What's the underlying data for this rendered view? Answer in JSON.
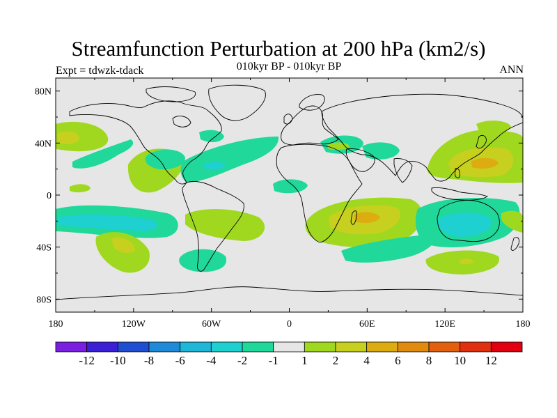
{
  "title": "Streamfunction Perturbation at 200 hPa (km2/s)",
  "subtitle": "010kyr BP - 010kyr BP",
  "left_label": "Expt = tdwzk-tdack",
  "right_label": "ANN",
  "colors": {
    "ocean": "#e6e6e6",
    "frame": "#000000",
    "palette": [
      "#7a1fe0",
      "#3a1fd6",
      "#1f4fd0",
      "#1f8ad8",
      "#1fb6d8",
      "#1fd0d0",
      "#1fd89a",
      "#e6e6e6",
      "#a0d81f",
      "#c8d01f",
      "#dcac10",
      "#e08a10",
      "#e06010",
      "#e03010",
      "#e00010"
    ]
  },
  "chart_data": {
    "type": "contour-map",
    "variable": "Streamfunction Perturbation at 200 hPa",
    "units": "km2/s",
    "projection": "cylindrical equidistant",
    "lon_range": [
      -180,
      180
    ],
    "lat_range": [
      -90,
      90
    ],
    "x_ticks": [
      "180",
      "120W",
      "60W",
      "0",
      "60E",
      "120E",
      "180"
    ],
    "x_tick_values": [
      -180,
      -120,
      -60,
      0,
      60,
      120,
      180
    ],
    "y_ticks": [
      "80N",
      "40N",
      "0",
      "40S",
      "80S"
    ],
    "y_tick_values": [
      80,
      40,
      0,
      -40,
      -80
    ],
    "colorbar_labels": [
      "-12",
      "-10",
      "-8",
      "-6",
      "-4",
      "-2",
      "-1",
      "1",
      "2",
      "4",
      "6",
      "8",
      "10",
      "12"
    ],
    "levels": [
      -12,
      -10,
      -8,
      -6,
      -4,
      -2,
      -1,
      1,
      2,
      4,
      6,
      8,
      10,
      12
    ],
    "anomalies": [
      {
        "lon": -165,
        "lat": 45,
        "level": 3
      },
      {
        "lon": -135,
        "lat": -35,
        "level": 3
      },
      {
        "lon": 60,
        "lat": -18,
        "level": 4
      },
      {
        "lon": 140,
        "lat": 25,
        "level": 3
      },
      {
        "lon": 145,
        "lat": -50,
        "level": 2
      },
      {
        "lon": -100,
        "lat": 20,
        "level": 1.5
      },
      {
        "lon": -50,
        "lat": -22,
        "level": 1.5
      },
      {
        "lon": 140,
        "lat": -20,
        "level": -2
      },
      {
        "lon": -140,
        "lat": -15,
        "level": -2
      },
      {
        "lon": -65,
        "lat": 20,
        "level": -1.5
      },
      {
        "lon": -65,
        "lat": -50,
        "level": -1.5
      },
      {
        "lon": 35,
        "lat": 35,
        "level": -1.5
      },
      {
        "lon": 60,
        "lat": 35,
        "level": -1.5
      }
    ]
  }
}
